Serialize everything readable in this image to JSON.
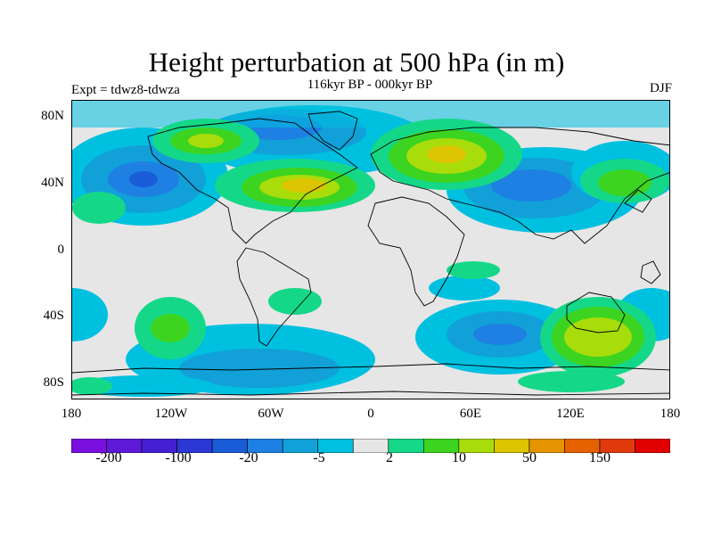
{
  "title": "Height perturbation at 500 hPa (in m)",
  "subtitle": "116kyr BP - 000kyr BP",
  "experiment_label": "Expt = tdwz8-tdwza",
  "season_label": "DJF",
  "map": {
    "projection": "cylindrical equidistant",
    "lon_range": [
      -180,
      180
    ],
    "lat_range": [
      -90,
      90
    ],
    "background_color": "#e6e6e6",
    "lat_ticks": [
      "80N",
      "40N",
      "0",
      "40S",
      "80S"
    ],
    "lon_ticks": [
      "180",
      "120W",
      "60W",
      "0",
      "60E",
      "120E",
      "180"
    ]
  },
  "colorbar": {
    "colors": [
      "#7a10e0",
      "#5e18d8",
      "#4420d2",
      "#2c38d6",
      "#1a5cd8",
      "#1e80e2",
      "#12a0d8",
      "#00c0e0",
      "#e6e6e6",
      "#14d888",
      "#3cd420",
      "#a8dc0a",
      "#dcc400",
      "#e49400",
      "#e66200",
      "#e03a0c",
      "#e00000"
    ],
    "labels": [
      "-200",
      "-100",
      "-20",
      "-5",
      "2",
      "10",
      "50",
      "150"
    ]
  }
}
